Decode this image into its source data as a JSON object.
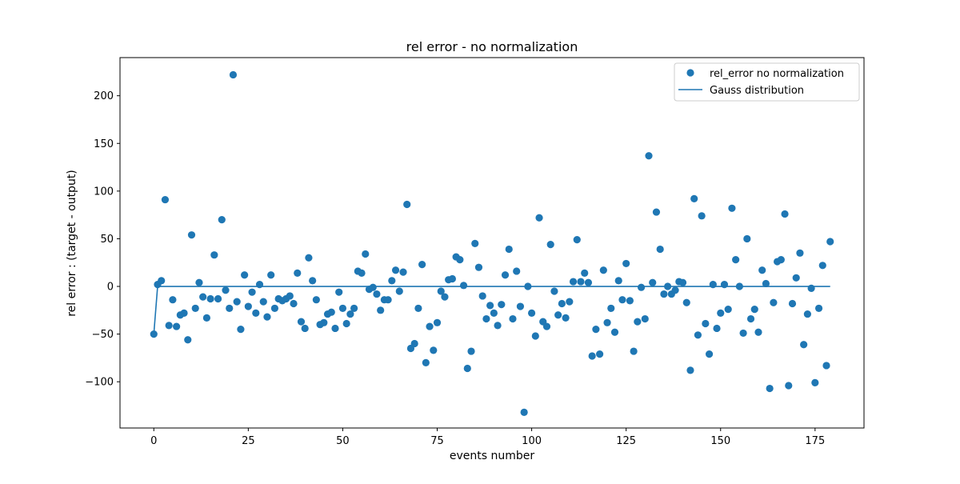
{
  "chart_data": {
    "type": "scatter",
    "title": "rel error - no normalization",
    "xlabel": "events number",
    "ylabel": "rel error : (target - output)",
    "xlim": [
      -8.95,
      187.95
    ],
    "ylim": [
      -148.5,
      240.0
    ],
    "xticks": [
      0,
      25,
      50,
      75,
      100,
      125,
      150,
      175
    ],
    "xtick_labels": [
      "0",
      "25",
      "50",
      "75",
      "100",
      "125",
      "150",
      "175"
    ],
    "yticks": [
      -100,
      -50,
      0,
      50,
      100,
      150,
      200
    ],
    "ytick_labels": [
      "−100",
      "−50",
      "0",
      "50",
      "100",
      "150",
      "200"
    ],
    "grid": false,
    "legend_position": "top-right",
    "colors": {
      "series": "#1f77b4"
    },
    "series": [
      {
        "name": "rel_error no normalization",
        "kind": "scatter",
        "x": [
          0,
          1,
          2,
          3,
          4,
          5,
          6,
          7,
          8,
          9,
          10,
          11,
          12,
          13,
          14,
          15,
          16,
          17,
          18,
          19,
          20,
          21,
          22,
          23,
          24,
          25,
          26,
          27,
          28,
          29,
          30,
          31,
          32,
          33,
          34,
          35,
          36,
          37,
          38,
          39,
          40,
          41,
          42,
          43,
          44,
          45,
          46,
          47,
          48,
          49,
          50,
          51,
          52,
          53,
          54,
          55,
          56,
          57,
          58,
          59,
          60,
          61,
          62,
          63,
          64,
          65,
          66,
          67,
          68,
          69,
          70,
          71,
          72,
          73,
          74,
          75,
          76,
          77,
          78,
          79,
          80,
          81,
          82,
          83,
          84,
          85,
          86,
          87,
          88,
          89,
          90,
          91,
          92,
          93,
          94,
          95,
          96,
          97,
          98,
          99,
          100,
          101,
          102,
          103,
          104,
          105,
          106,
          107,
          108,
          109,
          110,
          111,
          112,
          113,
          114,
          115,
          116,
          117,
          118,
          119,
          120,
          121,
          122,
          123,
          124,
          125,
          126,
          127,
          128,
          129,
          130,
          131,
          132,
          133,
          134,
          135,
          136,
          137,
          138,
          139,
          140,
          141,
          142,
          143,
          144,
          145,
          146,
          147,
          148,
          149,
          150,
          151,
          152,
          153,
          154,
          155,
          156,
          157,
          158,
          159,
          160,
          161,
          162,
          163,
          164,
          165,
          166,
          167,
          168,
          169,
          170,
          171,
          172,
          173,
          174,
          175,
          176,
          177,
          178,
          179
        ],
        "y": [
          -50,
          2,
          6,
          91,
          -41,
          -14,
          -42,
          -30,
          -28,
          -56,
          54,
          -23,
          4,
          -11,
          -33,
          -13,
          33,
          -13,
          70,
          -4,
          -23,
          222,
          -16,
          -45,
          12,
          -21,
          -6,
          -28,
          2,
          -16,
          -32,
          12,
          -23,
          -13,
          -15,
          -13,
          -10,
          -18,
          14,
          -37,
          -44,
          30,
          6,
          -14,
          -40,
          -38,
          -29,
          -27,
          -44,
          -6,
          -23,
          -39,
          -29,
          -23,
          16,
          14,
          34,
          -3,
          -1,
          -8,
          -25,
          -14,
          -14,
          6,
          17,
          -5,
          15,
          86,
          -65,
          -60,
          -23,
          23,
          -80,
          -42,
          -67,
          -38,
          -5,
          -11,
          7,
          8,
          31,
          28,
          1,
          -86,
          -68,
          45,
          20,
          -10,
          -34,
          -20,
          -28,
          -41,
          -19,
          12,
          39,
          -34,
          16,
          -21,
          -132,
          0,
          -28,
          -52,
          72,
          -37,
          -42,
          44,
          -5,
          -30,
          -18,
          -33,
          -16,
          5,
          49,
          5,
          14,
          4,
          -73,
          -45,
          -71,
          17,
          -38,
          -23,
          -48,
          6,
          -14,
          24,
          -15,
          -68,
          -37,
          -1,
          -34,
          137,
          4,
          78,
          39,
          -8,
          0,
          -8,
          -4,
          5,
          4,
          -17,
          -88,
          92,
          -51,
          74,
          -39,
          -71,
          2,
          -44,
          -28,
          2,
          -24,
          82,
          28,
          0,
          -49,
          50,
          -34,
          -24,
          -48,
          17,
          3,
          -107,
          -17,
          26,
          28,
          76,
          -104,
          -18,
          9,
          35,
          -61,
          -29,
          -2,
          -101,
          -23,
          22,
          -83,
          47
        ]
      },
      {
        "name": "Gauss distribution",
        "kind": "line",
        "x": [
          0,
          1,
          2,
          179
        ],
        "y": [
          -50,
          0,
          0,
          0
        ]
      }
    ]
  }
}
